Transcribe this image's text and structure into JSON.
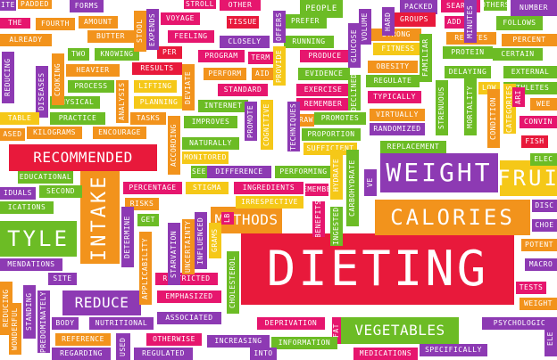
{
  "palette": {
    "pink": "#e6166e",
    "red": "#e8193b",
    "orange": "#f2931c",
    "yellow": "#f5c818",
    "green": "#6cbc25",
    "purple": "#8d3ab3",
    "blue": "#1e97d6",
    "background": "#ffffff"
  },
  "words": [
    "DIETING",
    "WEIGHT",
    "CALORIES",
    "RECOMMENDED",
    "INTAKE",
    "METHODS",
    "VEGETABLES",
    "REDUCE",
    "TYLE",
    "FRUI",
    "PADDED",
    "FORMS",
    "STROLL",
    "PEOPLE",
    "PACKED",
    "SEARCH",
    "NUMBER",
    "FOURTH",
    "AMOUNT",
    "VOYAGE",
    "TISSUE",
    "PREFER",
    "GROUPS",
    "ADD",
    "FOLLOWS",
    "ALREADY",
    "BUTTER",
    "FEELING",
    "CLOSELY",
    "RUNNING",
    "STRONG",
    "RELATES",
    "PERCENT",
    "TWO",
    "KNOWING",
    "PER",
    "PROGRAM",
    "TERM",
    "PRODUCE",
    "FITNESS",
    "PROTEIN",
    "CERTAIN",
    "HEAVIER",
    "RESULTS",
    "PERFORM",
    "AID",
    "EVIDENCE",
    "OBESITY",
    "DELAYING",
    "EXTERNAL",
    "PROCESS",
    "LIFTING",
    "STANDARD",
    "EXERCISE",
    "REGULATE",
    "LOW",
    "ATHLETES",
    "PHYSICAL",
    "PLANNING",
    "INTERNET",
    "REMEMBER",
    "TYPICALLY",
    "PRACTICE",
    "TASKS",
    "PROMOTES",
    "VIRTUALLY",
    "CONVIN",
    "IMPROVES",
    "RAW",
    "RANDOMIZED",
    "KILOGRAMS",
    "ENCOURAGE",
    "PROPORTION",
    "NATURALLY",
    "SUFFICIENT",
    "REPLACEMENT",
    "FISH",
    "MONITORED",
    "ELEC",
    "SEE",
    "DIFFERENCE",
    "PERFORMING",
    "EDUCATIONAL",
    "SECOND",
    "PERCENTAGE",
    "STIGMA",
    "INGREDIENTS",
    "REMEMBER",
    "IDUALS",
    "RISKS",
    "IRRESPECTIVE",
    "ICATIONS",
    "GET",
    "DISC",
    "CHOE",
    "POTENT",
    "MENDATIONS",
    "MACRO",
    "SITE",
    "RESTRICTED",
    "TESTS",
    "EMPHASIZED",
    "WEIGHT",
    "NUTRITIONAL",
    "ASSOCIATED",
    "DEPRIVATION",
    "FAT",
    "PSYCHOLOGIC",
    "BODY",
    "REFERENCE",
    "OTHERWISE",
    "INCREASING",
    "INFORMATION",
    "SPECIFICALLY",
    "REGARDING",
    "USED",
    "REGULATED",
    "MEDICATIONS",
    "INTO",
    "REDUCING",
    "COOKING",
    "DISEASES",
    "ANALYSIS",
    "DEVIATE",
    "PROMOTE",
    "COGNITIVE",
    "PROVIDE",
    "GLUCOSE",
    "VOLUME",
    "HARD",
    "MINUTES",
    "STOOL",
    "EXPENDS",
    "OFFERS",
    "DECLINED",
    "FAMILIAR",
    "STRENUOUS",
    "MORTALITY",
    "CONDITION",
    "CATEGORIES",
    "ACCORDING",
    "TECHNIQUES",
    "HYDRATE",
    "VE",
    "CARBOHYDRATE",
    "INGESTED",
    "BENEFITS",
    "DETERMINE",
    "STARVATION",
    "UNCERTAINTY",
    "INFLUENCED",
    "GRAMS",
    "LB",
    "CHOLESTEROL",
    "APPLICABILITY",
    "STANDING",
    "REDUCING",
    "PREDOMINATELY",
    "WONDERFUL",
    "ELE",
    "ARI",
    "TABLE",
    "ASED",
    "ITE",
    "WEE",
    "THE",
    "OTHER",
    "OTHERS"
  ]
}
